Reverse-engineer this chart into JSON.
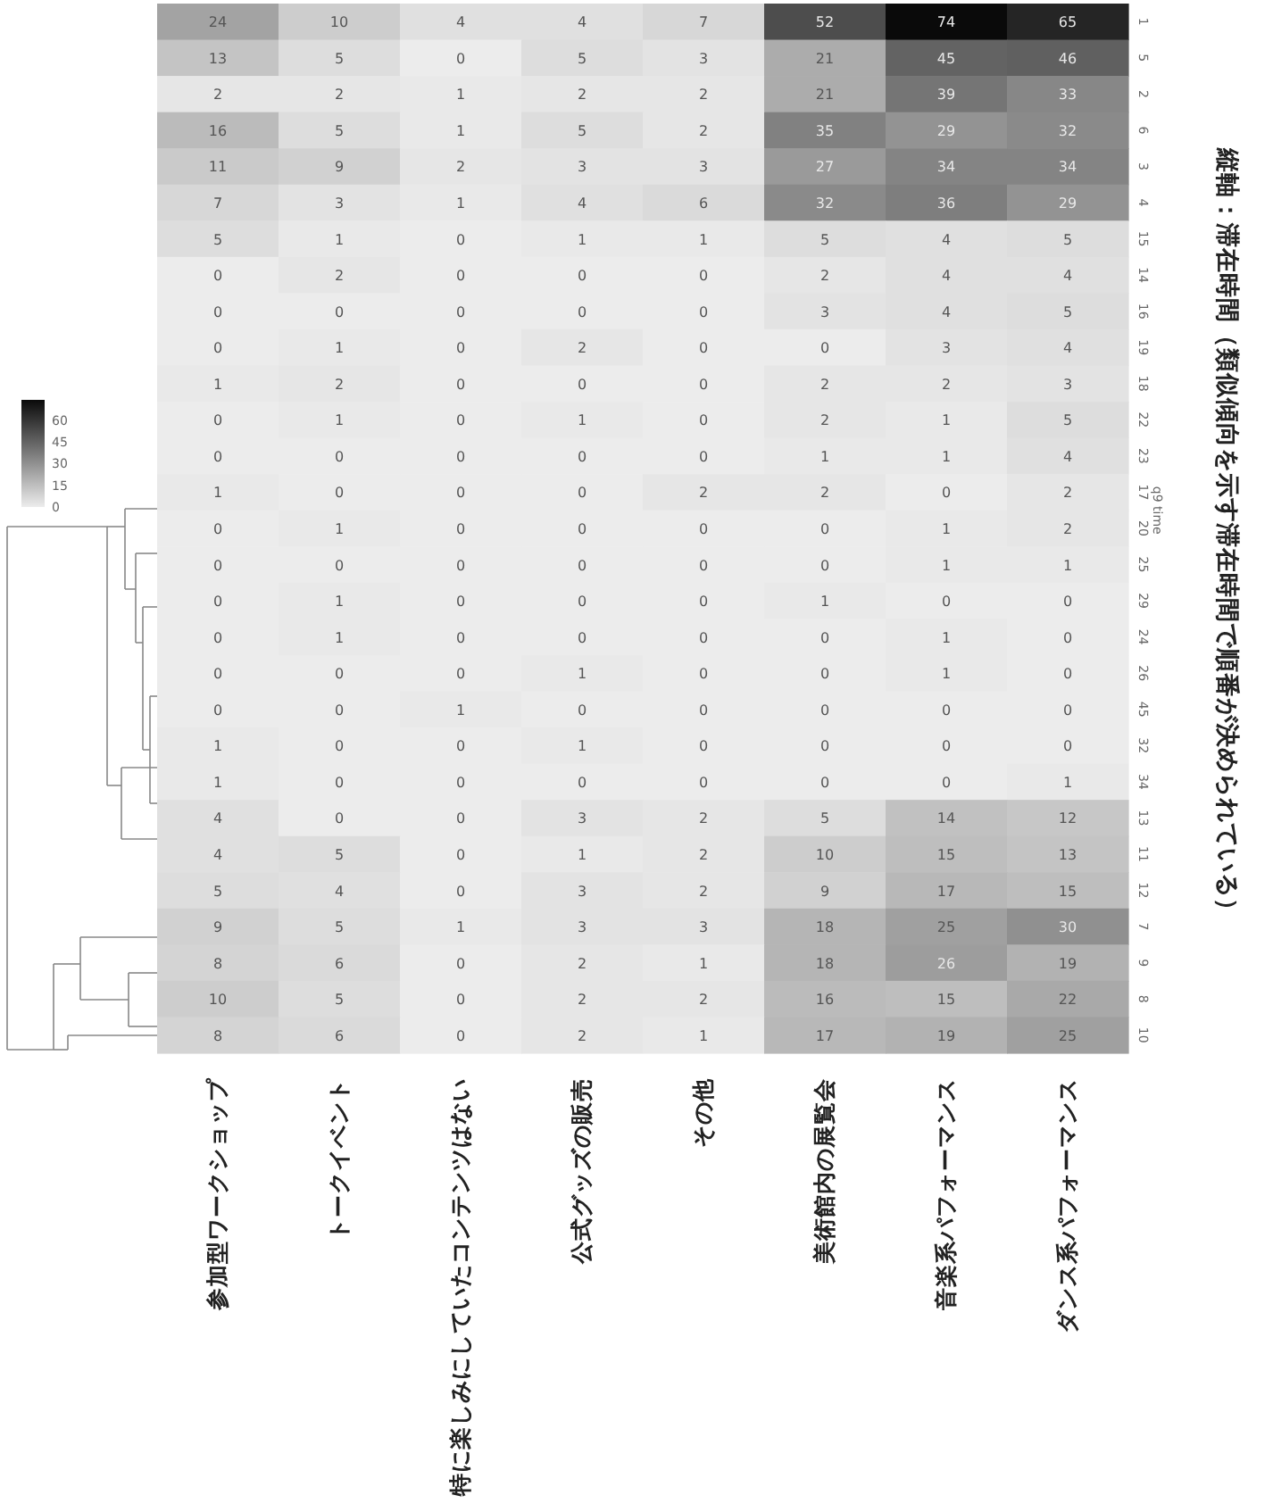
{
  "chart_data": {
    "type": "heatmap",
    "title": "縦軸：滞在時間（類似傾向を示す滞在時間で順番が決められている）",
    "ylabel": "q9 time",
    "categories": [
      "参加型ワークショップ",
      "トークイベント",
      "特に楽しみにしていたコンテンツはない",
      "公式グッズの販売",
      "その他",
      "美術館内の展覧会",
      "音楽系パフォーマンス",
      "ダンス系パフォーマンス"
    ],
    "y_categories": [
      "1",
      "5",
      "2",
      "6",
      "3",
      "4",
      "15",
      "14",
      "16",
      "19",
      "18",
      "22",
      "23",
      "17",
      "20",
      "25",
      "29",
      "24",
      "26",
      "45",
      "32",
      "34",
      "13",
      "11",
      "12",
      "7",
      "9",
      "8",
      "10"
    ],
    "cells": [
      [
        24,
        10,
        4,
        4,
        7,
        52,
        74,
        65
      ],
      [
        13,
        5,
        0,
        5,
        3,
        21,
        45,
        46
      ],
      [
        2,
        2,
        1,
        2,
        2,
        21,
        39,
        33
      ],
      [
        16,
        5,
        1,
        5,
        2,
        35,
        29,
        32
      ],
      [
        11,
        9,
        2,
        3,
        3,
        27,
        34,
        34
      ],
      [
        7,
        3,
        1,
        4,
        6,
        32,
        36,
        29
      ],
      [
        5,
        1,
        0,
        1,
        1,
        5,
        4,
        5
      ],
      [
        0,
        2,
        0,
        0,
        0,
        2,
        4,
        4
      ],
      [
        0,
        0,
        0,
        0,
        0,
        3,
        4,
        5
      ],
      [
        0,
        1,
        0,
        2,
        0,
        0,
        3,
        4
      ],
      [
        1,
        2,
        0,
        0,
        0,
        2,
        2,
        3
      ],
      [
        0,
        1,
        0,
        1,
        0,
        2,
        1,
        5
      ],
      [
        0,
        0,
        0,
        0,
        0,
        1,
        1,
        4
      ],
      [
        1,
        0,
        0,
        0,
        2,
        2,
        0,
        2
      ],
      [
        0,
        1,
        0,
        0,
        0,
        0,
        1,
        2
      ],
      [
        0,
        0,
        0,
        0,
        0,
        0,
        1,
        1
      ],
      [
        0,
        1,
        0,
        0,
        0,
        1,
        0,
        0
      ],
      [
        0,
        1,
        0,
        0,
        0,
        0,
        1,
        0
      ],
      [
        0,
        0,
        0,
        1,
        0,
        0,
        1,
        0
      ],
      [
        0,
        0,
        1,
        0,
        0,
        0,
        0,
        0
      ],
      [
        1,
        0,
        0,
        1,
        0,
        0,
        0,
        0
      ],
      [
        1,
        0,
        0,
        0,
        0,
        0,
        0,
        1
      ],
      [
        4,
        0,
        0,
        3,
        2,
        5,
        14,
        12
      ],
      [
        4,
        5,
        0,
        1,
        2,
        10,
        15,
        13
      ],
      [
        5,
        4,
        0,
        3,
        2,
        9,
        17,
        15
      ],
      [
        9,
        5,
        1,
        3,
        3,
        18,
        25,
        30
      ],
      [
        8,
        6,
        0,
        2,
        1,
        18,
        26,
        19
      ],
      [
        10,
        5,
        0,
        2,
        2,
        16,
        15,
        22
      ],
      [
        8,
        6,
        0,
        2,
        1,
        17,
        19,
        25
      ]
    ],
    "clim": [
      0,
      74
    ],
    "cticks": [
      0,
      15,
      30,
      45,
      60
    ],
    "data_labels": true
  }
}
